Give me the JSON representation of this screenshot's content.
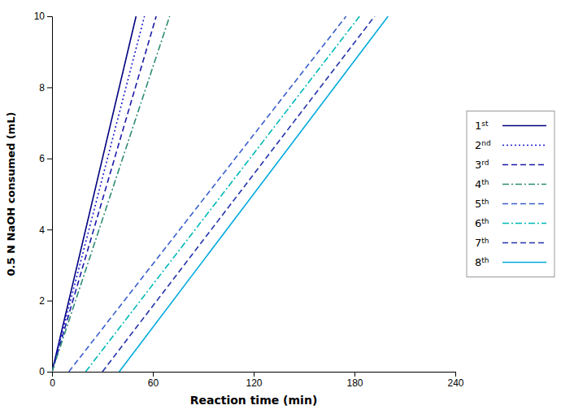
{
  "chart_data": {
    "type": "line",
    "x_label": "Reaction time (min)",
    "y_label": "0.5 N NaOH consumed (mL)",
    "xlim": [
      0,
      240
    ],
    "xticks": [
      0,
      60,
      120,
      180,
      240
    ],
    "ylim": [
      0,
      10
    ],
    "yticks": [
      0,
      2,
      4,
      6,
      8,
      10
    ],
    "grid": false,
    "legend": "right",
    "series": [
      {
        "name": "1st",
        "color": "#000080",
        "line_style": "solid",
        "x": [
          0,
          50
        ],
        "values": [
          0,
          10
        ]
      },
      {
        "name": "2nd",
        "color": "#1a1acd",
        "line_style": "dotted",
        "x": [
          0,
          55
        ],
        "values": [
          0,
          10
        ]
      },
      {
        "name": "3rd",
        "color": "#1a1aaa",
        "line_style": "dashed",
        "x": [
          0,
          62
        ],
        "values": [
          0,
          10
        ]
      },
      {
        "name": "4th",
        "color": "#2e8b74",
        "line_style": "dashdot",
        "x": [
          0,
          70
        ],
        "values": [
          0,
          10
        ]
      },
      {
        "name": "5th",
        "color": "#3a5fcd",
        "line_style": "dashed",
        "x": [
          10,
          175
        ],
        "values": [
          0,
          10
        ]
      },
      {
        "name": "6th",
        "color": "#00b8b8",
        "line_style": "dashdot",
        "x": [
          20,
          183
        ],
        "values": [
          0,
          10
        ]
      },
      {
        "name": "7th",
        "color": "#2233aa",
        "line_style": "dashed",
        "x": [
          30,
          192
        ],
        "values": [
          0,
          10
        ]
      },
      {
        "name": "8th",
        "color": "#00aadd",
        "line_style": "solid",
        "x": [
          40,
          200
        ],
        "values": [
          0,
          10
        ]
      }
    ]
  }
}
